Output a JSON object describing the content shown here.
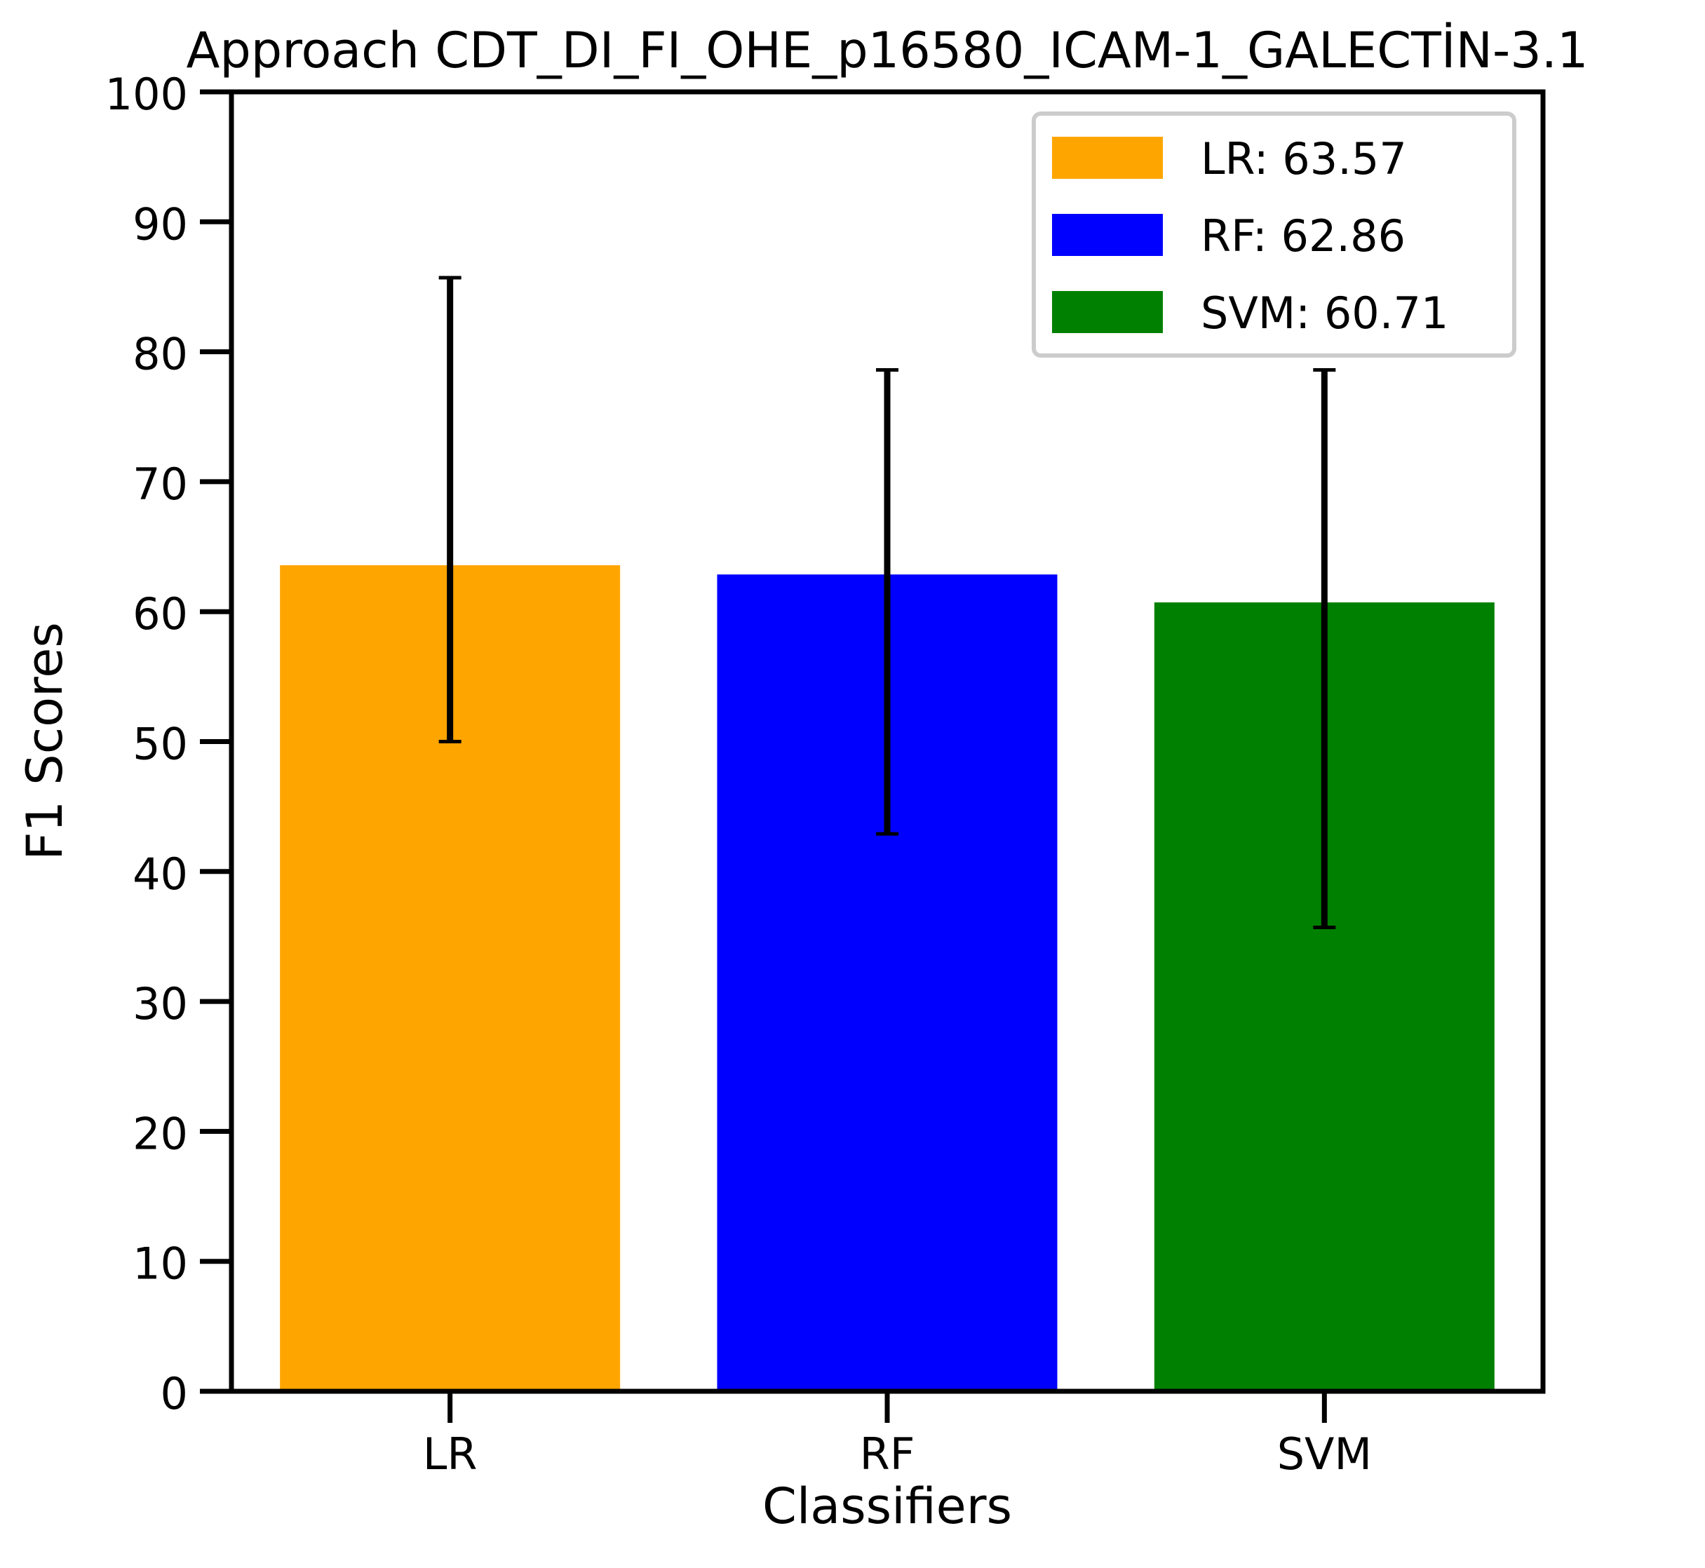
{
  "chart_data": {
    "type": "bar",
    "title": "Approach CDT_DI_FI_OHE_p16580_ICAM-1_GALECTİN-3.1",
    "xlabel": "Classifiers",
    "ylabel": "F1 Scores",
    "categories": [
      "LR",
      "RF",
      "SVM"
    ],
    "values": [
      63.57,
      62.86,
      60.71
    ],
    "error_low": [
      50.0,
      42.9,
      35.7
    ],
    "error_high": [
      85.7,
      78.6,
      78.6
    ],
    "colors": [
      "#ffa500",
      "#0000ff",
      "#008000"
    ],
    "ylim": [
      0,
      100
    ],
    "yticks": [
      0,
      10,
      20,
      30,
      40,
      50,
      60,
      70,
      80,
      90,
      100
    ],
    "ytick_labels": [
      "0",
      "10",
      "20",
      "30",
      "40",
      "50",
      "60",
      "70",
      "80",
      "90",
      "100"
    ],
    "grid": false,
    "legend": {
      "placement": "top-right",
      "entries": [
        {
          "label": "LR: 63.57",
          "color": "#ffa500"
        },
        {
          "label": "RF: 62.86",
          "color": "#0000ff"
        },
        {
          "label": "SVM: 60.71",
          "color": "#008000"
        }
      ]
    }
  }
}
